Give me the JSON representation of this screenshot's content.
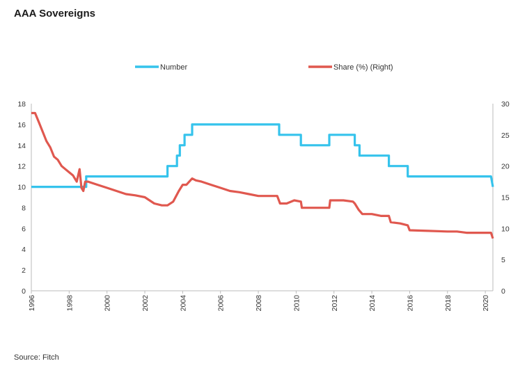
{
  "title": "AAA Sovereigns",
  "source": "Source: Fitch",
  "colors": {
    "number": "#35c3ec",
    "share": "#e0584f",
    "axis": "#bbbbbb"
  },
  "chart_data": {
    "type": "line",
    "title": "AAA Sovereigns",
    "xlabel": "",
    "ylabel": "",
    "y2label": "",
    "xlim": [
      1996,
      2020.4
    ],
    "ylim": [
      0,
      18
    ],
    "y2lim": [
      0,
      30
    ],
    "x_ticks": [
      "1996",
      "1998",
      "2000",
      "2002",
      "2004",
      "2006",
      "2008",
      "2010",
      "2012",
      "2014",
      "2016",
      "2018",
      "2020"
    ],
    "y_ticks": [
      "0",
      "2",
      "4",
      "6",
      "8",
      "10",
      "12",
      "14",
      "16",
      "18"
    ],
    "y2_ticks": [
      "0",
      "5",
      "10",
      "15",
      "20",
      "25",
      "30"
    ],
    "legend_position": "top",
    "series": [
      {
        "name": "Number",
        "axis": "left",
        "color": "#35c3ec",
        "x": [
          1996.0,
          1998.9,
          1998.9,
          2003.2,
          2003.2,
          2003.7,
          2003.7,
          2003.85,
          2003.85,
          2004.1,
          2004.1,
          2004.5,
          2004.5,
          2009.1,
          2009.1,
          2010.25,
          2010.25,
          2011.75,
          2011.75,
          2013.1,
          2013.1,
          2013.35,
          2013.35,
          2014.9,
          2014.9,
          2015.9,
          2015.9,
          2020.3,
          2020.4
        ],
        "y": [
          10,
          10,
          11,
          11,
          12,
          12,
          13,
          13,
          14,
          14,
          15,
          15,
          16,
          16,
          15,
          15,
          14,
          14,
          15,
          15,
          14,
          14,
          13,
          13,
          12,
          12,
          11,
          11,
          10
        ]
      },
      {
        "name": "Share (%) (Right)",
        "axis": "right",
        "color": "#e0584f",
        "x": [
          1996.0,
          1996.2,
          1996.4,
          1996.6,
          1996.8,
          1997.0,
          1997.2,
          1997.4,
          1997.6,
          1997.8,
          1998.0,
          1998.2,
          1998.4,
          1998.55,
          1998.65,
          1998.75,
          1998.85,
          1998.95,
          1999.0,
          1999.5,
          2000.0,
          2000.5,
          2001.0,
          2001.5,
          2002.0,
          2002.5,
          2002.9,
          2003.2,
          2003.5,
          2003.8,
          2004.0,
          2004.2,
          2004.5,
          2004.7,
          2005.0,
          2005.5,
          2006.0,
          2006.5,
          2007.0,
          2007.5,
          2008.0,
          2008.5,
          2009.0,
          2009.15,
          2009.5,
          2009.9,
          2010.25,
          2010.3,
          2011.0,
          2011.5,
          2011.75,
          2011.8,
          2012.5,
          2013.0,
          2013.1,
          2013.3,
          2013.5,
          2014.0,
          2014.5,
          2014.9,
          2015.0,
          2015.5,
          2015.9,
          2016.0,
          2017.0,
          2018.0,
          2018.5,
          2019.0,
          2020.0,
          2020.3,
          2020.4
        ],
        "y": [
          28.5,
          28.5,
          27,
          25.5,
          24,
          23,
          21.5,
          21,
          20,
          19.5,
          19,
          18.5,
          17.5,
          19.5,
          16.5,
          16,
          17.5,
          17.5,
          17.5,
          17,
          16.5,
          16,
          15.5,
          15.3,
          15,
          14,
          13.7,
          13.7,
          14.3,
          16,
          17,
          17,
          18,
          17.7,
          17.5,
          17,
          16.5,
          16,
          15.8,
          15.5,
          15.2,
          15.2,
          15.2,
          14,
          14,
          14.5,
          14.3,
          13.3,
          13.3,
          13.3,
          13.3,
          14.5,
          14.5,
          14.3,
          14,
          13,
          12.3,
          12.3,
          12,
          12,
          11,
          10.8,
          10.5,
          9.7,
          9.6,
          9.5,
          9.5,
          9.3,
          9.3,
          9.3,
          8.4
        ]
      }
    ]
  }
}
